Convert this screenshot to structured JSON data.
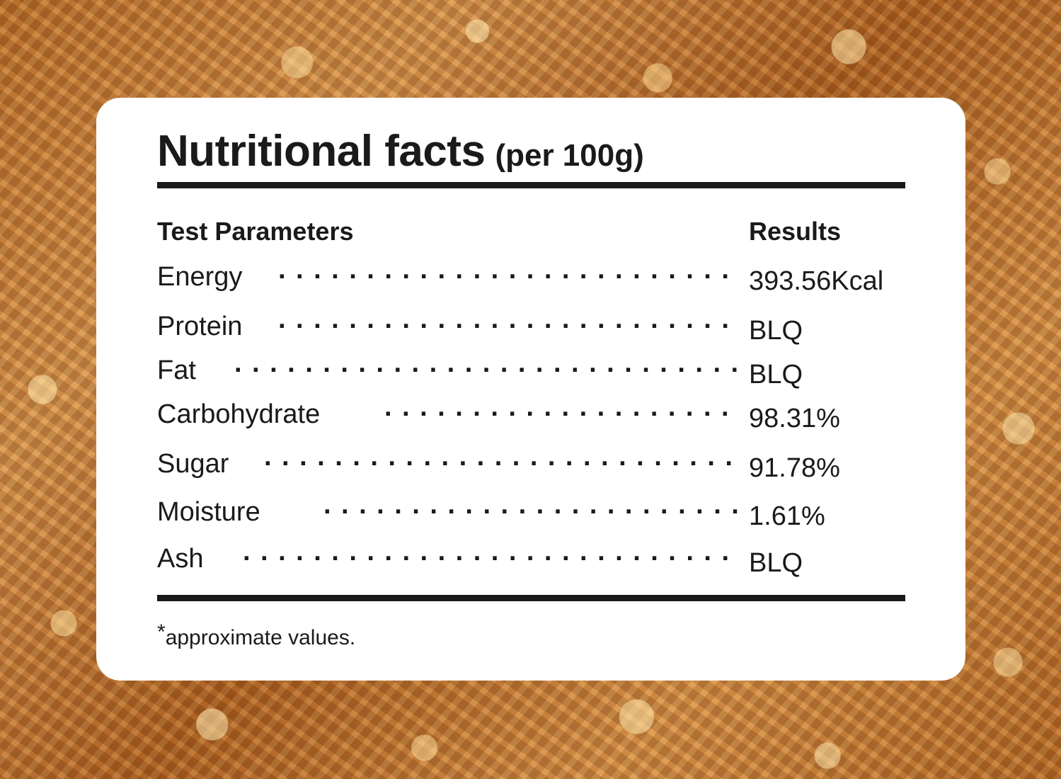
{
  "title": {
    "main": "Nutritional facts",
    "sub": "(per 100g)"
  },
  "table": {
    "header_left": "Test Parameters",
    "header_right": "Results",
    "rows": [
      {
        "parameter": "Energy",
        "result": "393.56Kcal"
      },
      {
        "parameter": "Protein",
        "result": "BLQ"
      },
      {
        "parameter": "Fat",
        "result": "BLQ"
      },
      {
        "parameter": "Carbohydrate",
        "result": "98.31%"
      },
      {
        "parameter": "Sugar",
        "result": "91.78%"
      },
      {
        "parameter": "Moisture",
        "result": "1.61%"
      },
      {
        "parameter": "Ash",
        "result": "BLQ"
      }
    ]
  },
  "footnote": {
    "asterisk": "*",
    "text": "approximate values."
  },
  "colors": {
    "text": "#1a1a1a",
    "card": "#ffffff",
    "background": "#b86e2a"
  },
  "dot_leader": "································"
}
